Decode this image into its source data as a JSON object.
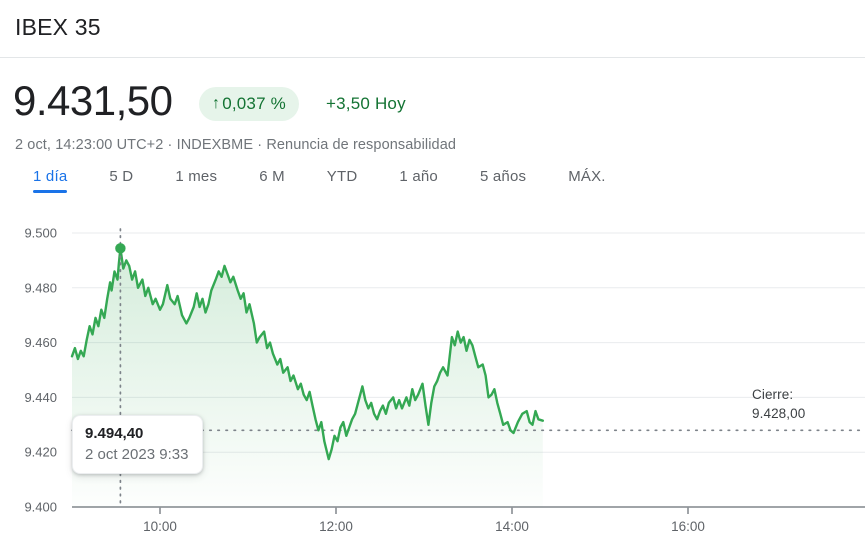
{
  "header": {
    "title": "IBEX 35",
    "price": "9.431,50",
    "change_arrow": "↑",
    "change_percent": "0,037 %",
    "change_amount": "+3,50 Hoy",
    "meta_info": "2 oct, 14:23:00 UTC+2 · INDEXBME · ",
    "disclaimer": "Renuncia de responsabilidad"
  },
  "colors": {
    "accent_green": "#34a853",
    "text_green": "#137333",
    "badge_bg": "#e6f4ea",
    "active_tab_blue": "#1a73e8",
    "grid": "#e9ebee",
    "axis": "#80868b",
    "label_gray": "#5f6368"
  },
  "tabs": [
    {
      "label": "1 día",
      "active": true
    },
    {
      "label": "5 D",
      "active": false
    },
    {
      "label": "1 mes",
      "active": false
    },
    {
      "label": "6 M",
      "active": false
    },
    {
      "label": "YTD",
      "active": false
    },
    {
      "label": "1 año",
      "active": false
    },
    {
      "label": "5 años",
      "active": false
    },
    {
      "label": "MÁX.",
      "active": false
    }
  ],
  "chart_data": {
    "type": "area",
    "title": "IBEX 35 intradía (1 día)",
    "xlabel": "",
    "ylabel": "",
    "x_axis": {
      "start_minutes": 0,
      "start_time": "9:00",
      "ticks": [
        {
          "label": "10:00",
          "minutes": 60
        },
        {
          "label": "12:00",
          "minutes": 180
        },
        {
          "label": "14:00",
          "minutes": 300
        },
        {
          "label": "16:00",
          "minutes": 420
        }
      ]
    },
    "y_axis": {
      "min": 9400,
      "max": 9500,
      "ticks": [
        {
          "label": "9.500",
          "value": 9500
        },
        {
          "label": "9.480",
          "value": 9480
        },
        {
          "label": "9.460",
          "value": 9460
        },
        {
          "label": "9.440",
          "value": 9440
        },
        {
          "label": "9.420",
          "value": 9420
        },
        {
          "label": "9.400",
          "value": 9400
        }
      ]
    },
    "close_line": {
      "label": "Cierre:",
      "value_label": "9.428,00",
      "value": 9428
    },
    "marker": {
      "minutes": 33,
      "value": 9494.4,
      "tooltip": {
        "price": "9.494,40",
        "datetime": "2 oct 2023 9:33"
      }
    },
    "series": [
      {
        "name": "IBEX 35",
        "color": "#34a853",
        "points": [
          [
            0,
            9455
          ],
          [
            2,
            9458
          ],
          [
            4,
            9454
          ],
          [
            6,
            9457
          ],
          [
            8,
            9455
          ],
          [
            10,
            9461
          ],
          [
            12,
            9466
          ],
          [
            14,
            9463
          ],
          [
            16,
            9469
          ],
          [
            18,
            9466
          ],
          [
            20,
            9472
          ],
          [
            22,
            9469
          ],
          [
            24,
            9476
          ],
          [
            26,
            9482
          ],
          [
            27,
            9479
          ],
          [
            29,
            9486
          ],
          [
            31,
            9483
          ],
          [
            32,
            9489
          ],
          [
            33,
            9494.4
          ],
          [
            35,
            9487
          ],
          [
            37,
            9490
          ],
          [
            39,
            9488
          ],
          [
            41,
            9483
          ],
          [
            43,
            9486
          ],
          [
            45,
            9480
          ],
          [
            48,
            9483
          ],
          [
            50,
            9477
          ],
          [
            52,
            9480
          ],
          [
            55,
            9474
          ],
          [
            57,
            9476
          ],
          [
            60,
            9472
          ],
          [
            62,
            9474
          ],
          [
            65,
            9481
          ],
          [
            67,
            9476
          ],
          [
            70,
            9474
          ],
          [
            72,
            9477
          ],
          [
            75,
            9470
          ],
          [
            78,
            9467
          ],
          [
            80,
            9469
          ],
          [
            83,
            9473
          ],
          [
            85,
            9478
          ],
          [
            87,
            9473
          ],
          [
            89,
            9476
          ],
          [
            91,
            9471
          ],
          [
            93,
            9474
          ],
          [
            95,
            9479
          ],
          [
            98,
            9483
          ],
          [
            100,
            9486
          ],
          [
            102,
            9484
          ],
          [
            104,
            9488
          ],
          [
            106,
            9485
          ],
          [
            108,
            9482
          ],
          [
            110,
            9484
          ],
          [
            113,
            9479
          ],
          [
            115,
            9476
          ],
          [
            117,
            9478
          ],
          [
            119,
            9471
          ],
          [
            121,
            9474
          ],
          [
            124,
            9467
          ],
          [
            126,
            9460
          ],
          [
            128,
            9462
          ],
          [
            131,
            9464
          ],
          [
            133,
            9458
          ],
          [
            135,
            9460
          ],
          [
            137,
            9456
          ],
          [
            140,
            9452
          ],
          [
            142,
            9454
          ],
          [
            144,
            9449
          ],
          [
            147,
            9451
          ],
          [
            149,
            9446
          ],
          [
            151,
            9448
          ],
          [
            154,
            9443
          ],
          [
            156,
            9445
          ],
          [
            158,
            9441
          ],
          [
            160,
            9439
          ],
          [
            162,
            9442
          ],
          [
            164,
            9437
          ],
          [
            166,
            9432
          ],
          [
            168,
            9428
          ],
          [
            170,
            9431
          ],
          [
            172,
            9424
          ],
          [
            175,
            9417.5
          ],
          [
            177,
            9421
          ],
          [
            179,
            9426
          ],
          [
            181,
            9424
          ],
          [
            183,
            9429
          ],
          [
            185,
            9431
          ],
          [
            187,
            9426
          ],
          [
            189,
            9429
          ],
          [
            191,
            9432
          ],
          [
            193,
            9434
          ],
          [
            195,
            9438
          ],
          [
            198,
            9444
          ],
          [
            200,
            9439
          ],
          [
            202,
            9436
          ],
          [
            204,
            9438
          ],
          [
            206,
            9434
          ],
          [
            208,
            9432
          ],
          [
            210,
            9435
          ],
          [
            212,
            9437
          ],
          [
            214,
            9434
          ],
          [
            216,
            9438
          ],
          [
            219,
            9440
          ],
          [
            221,
            9436
          ],
          [
            223,
            9439
          ],
          [
            225,
            9436
          ],
          [
            228,
            9440
          ],
          [
            230,
            9437
          ],
          [
            232,
            9443
          ],
          [
            234,
            9439
          ],
          [
            236,
            9441
          ],
          [
            239,
            9445
          ],
          [
            241,
            9437
          ],
          [
            243,
            9430
          ],
          [
            245,
            9438
          ],
          [
            247,
            9444
          ],
          [
            249,
            9446
          ],
          [
            251,
            9449
          ],
          [
            253,
            9451
          ],
          [
            256,
            9448
          ],
          [
            259,
            9462
          ],
          [
            261,
            9459
          ],
          [
            263,
            9464
          ],
          [
            265,
            9460
          ],
          [
            267,
            9462
          ],
          [
            269,
            9457
          ],
          [
            271,
            9461
          ],
          [
            273,
            9459
          ],
          [
            275,
            9455
          ],
          [
            277,
            9451
          ],
          [
            280,
            9452
          ],
          [
            282,
            9448
          ],
          [
            284,
            9440
          ],
          [
            286,
            9441
          ],
          [
            288,
            9443
          ],
          [
            290,
            9438
          ],
          [
            292,
            9434
          ],
          [
            294,
            9430
          ],
          [
            297,
            9431
          ],
          [
            299,
            9428
          ],
          [
            301,
            9427
          ],
          [
            304,
            9431
          ],
          [
            307,
            9434
          ],
          [
            310,
            9435
          ],
          [
            312,
            9431
          ],
          [
            314,
            9430
          ],
          [
            316,
            9435
          ],
          [
            318,
            9432
          ],
          [
            321,
            9431.5
          ]
        ]
      }
    ]
  }
}
